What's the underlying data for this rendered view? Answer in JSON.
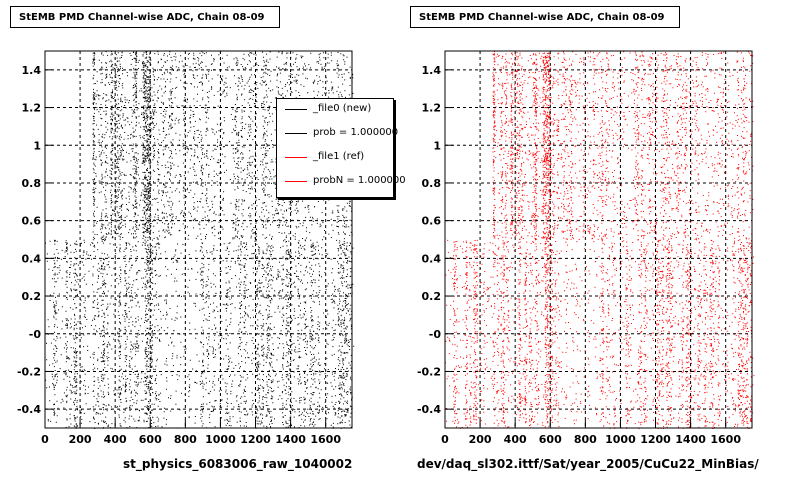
{
  "colors": {
    "new": "#000000",
    "ref": "#ff0000"
  },
  "chart_data": [
    {
      "type": "scatter",
      "title": "StEMB PMD Channel-wise ADC, Chain 08-09",
      "xlabel": "st_physics_6083006_raw_1040002",
      "ylabel": "",
      "xlim": [
        0,
        1750
      ],
      "ylim": [
        -0.5,
        1.5
      ],
      "x_ticks": [
        0,
        200,
        400,
        600,
        800,
        1000,
        1200,
        1400,
        1600
      ],
      "y_ticks": [
        -0.4,
        -0.2,
        0,
        0.2,
        0.4,
        0.6,
        0.8,
        1,
        1.2,
        1.4
      ],
      "y_tick_labels": [
        "-0.4",
        "-0.2",
        "-0",
        "0.2",
        "0.4",
        "0.6",
        "0.8",
        "1",
        "1.2",
        "1.4"
      ],
      "grid": true,
      "marker_color": "#000000",
      "density_bands": [
        {
          "x": [
            0,
            270
          ],
          "y": [
            -0.5,
            0.5
          ],
          "level": 0.5
        },
        {
          "x": [
            270,
            590
          ],
          "y": [
            0.5,
            1.5
          ],
          "level": 0.9
        },
        {
          "x": [
            270,
            640
          ],
          "y": [
            -0.5,
            0.5
          ],
          "level": 0.6
        },
        {
          "x": [
            590,
            1750
          ],
          "y": [
            0.5,
            1.5
          ],
          "level": 0.35
        },
        {
          "x": [
            640,
            880
          ],
          "y": [
            -0.5,
            0.5
          ],
          "level": 0.15
        },
        {
          "x": [
            880,
            1750
          ],
          "y": [
            -0.5,
            0.5
          ],
          "level": 0.4
        }
      ],
      "legend": {
        "placement": "top-right",
        "entries": [
          {
            "label": "_file0 (new)",
            "color": "#000000"
          },
          {
            "label": "prob = 1.000000",
            "color": "#000000"
          },
          {
            "label": "_file1 (ref)",
            "color": "#ff0000"
          },
          {
            "label": "probN = 1.000000",
            "color": "#ff0000"
          }
        ]
      }
    },
    {
      "type": "scatter",
      "title": "StEMB PMD Channel-wise ADC, Chain 08-09",
      "xlabel": "dev/daq_sl302.ittf/Sat/year_2005/CuCu22_MinBias/",
      "ylabel": "",
      "xlim": [
        0,
        1750
      ],
      "ylim": [
        -0.5,
        1.5
      ],
      "x_ticks": [
        0,
        200,
        400,
        600,
        800,
        1000,
        1200,
        1400,
        1600
      ],
      "y_ticks": [
        -0.4,
        -0.2,
        0,
        0.2,
        0.4,
        0.6,
        0.8,
        1,
        1.2,
        1.4
      ],
      "y_tick_labels": [
        "-0.4",
        "-0.2",
        "-0",
        "0.2",
        "0.4",
        "0.6",
        "0.8",
        "1",
        "1.2",
        "1.4"
      ],
      "grid": true,
      "marker_color": "#ff0000",
      "density_bands": [
        {
          "x": [
            0,
            270
          ],
          "y": [
            -0.5,
            0.5
          ],
          "level": 0.5
        },
        {
          "x": [
            270,
            590
          ],
          "y": [
            0.5,
            1.5
          ],
          "level": 0.9
        },
        {
          "x": [
            270,
            640
          ],
          "y": [
            -0.5,
            0.5
          ],
          "level": 0.6
        },
        {
          "x": [
            590,
            1750
          ],
          "y": [
            0.5,
            1.5
          ],
          "level": 0.35
        },
        {
          "x": [
            640,
            880
          ],
          "y": [
            -0.5,
            0.5
          ],
          "level": 0.15
        },
        {
          "x": [
            880,
            1750
          ],
          "y": [
            -0.5,
            0.5
          ],
          "level": 0.4
        }
      ]
    }
  ]
}
